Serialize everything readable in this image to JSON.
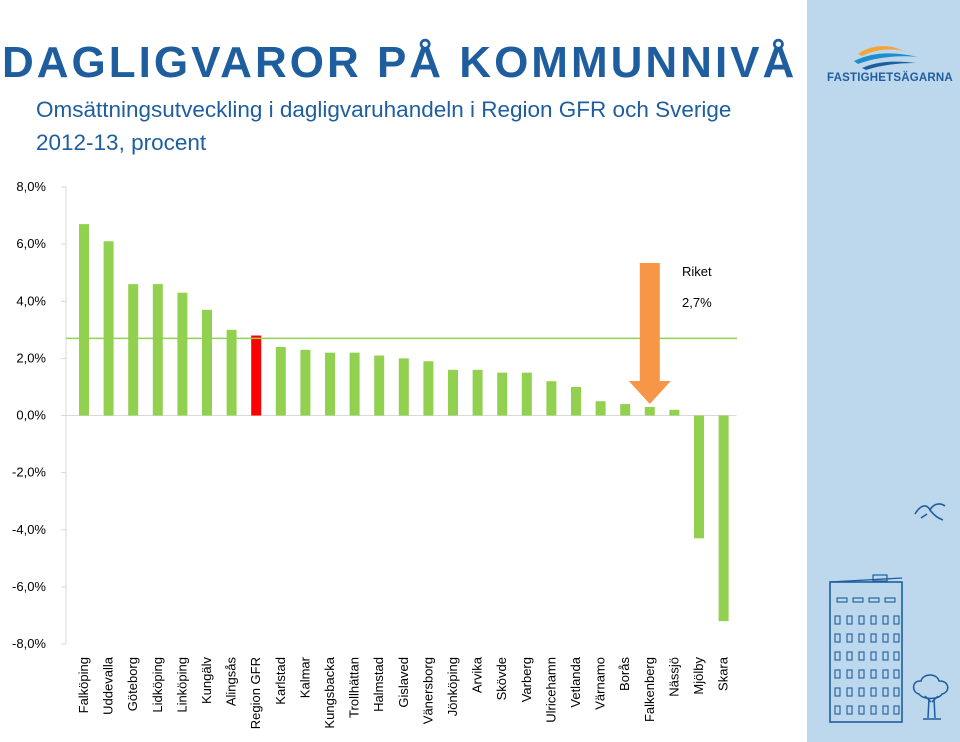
{
  "header": {
    "title": "DAGLIGVAROR PÅ KOMMUNNIVÅ",
    "subtitle": "Omsättningsutveckling i dagligvaruhandeln i Region GFR och Sverige 2012-13, procent"
  },
  "brand": {
    "name": "FASTIGHETSÄGARNA",
    "logo_icon": "wave-logo-icon"
  },
  "decorations": {
    "bird": "bird-icon",
    "building": "building-icon",
    "tree": "tree-icon"
  },
  "chart_data": {
    "type": "bar",
    "title": "Omsättningsutveckling i dagligvaruhandeln i Region GFR och Sverige 2012-13, procent",
    "categories": [
      "Falköping",
      "Uddevalla",
      "Göteborg",
      "Lidköping",
      "Linköping",
      "Kungälv",
      "Alingsås",
      "Region GFR",
      "Karlstad",
      "Kalmar",
      "Kungsbacka",
      "Trollhättan",
      "Halmstad",
      "Gislaved",
      "Vänersborg",
      "Jönköping",
      "Arvika",
      "Skövde",
      "Varberg",
      "Ulricehamn",
      "Vetlanda",
      "Värnamo",
      "Borås",
      "Falkenberg",
      "Nässjö",
      "Mjölby",
      "Skara"
    ],
    "values": [
      6.7,
      6.1,
      4.6,
      4.6,
      4.3,
      3.7,
      3.0,
      2.8,
      2.4,
      2.3,
      2.2,
      2.2,
      2.1,
      2.0,
      1.9,
      1.6,
      1.6,
      1.5,
      1.5,
      1.2,
      1.0,
      0.5,
      0.4,
      0.3,
      0.2,
      -4.3,
      -7.2
    ],
    "highlight_category": "Region GFR",
    "colors": {
      "bar": "#92d050",
      "highlight": "#ff0000",
      "reference_line": "#92d050",
      "arrow": "#f79646"
    },
    "reference_line": {
      "value": 2.7,
      "label": "Riket",
      "value_label": "2,7%"
    },
    "arrow_target": "Falkenberg",
    "yticks": [
      "8,0%",
      "6,0%",
      "4,0%",
      "2,0%",
      "0,0%",
      "-2,0%",
      "-4,0%",
      "-6,0%",
      "-8,0%"
    ],
    "ylim": [
      -8,
      8
    ],
    "grid": false,
    "xlabel": "",
    "ylabel": ""
  }
}
